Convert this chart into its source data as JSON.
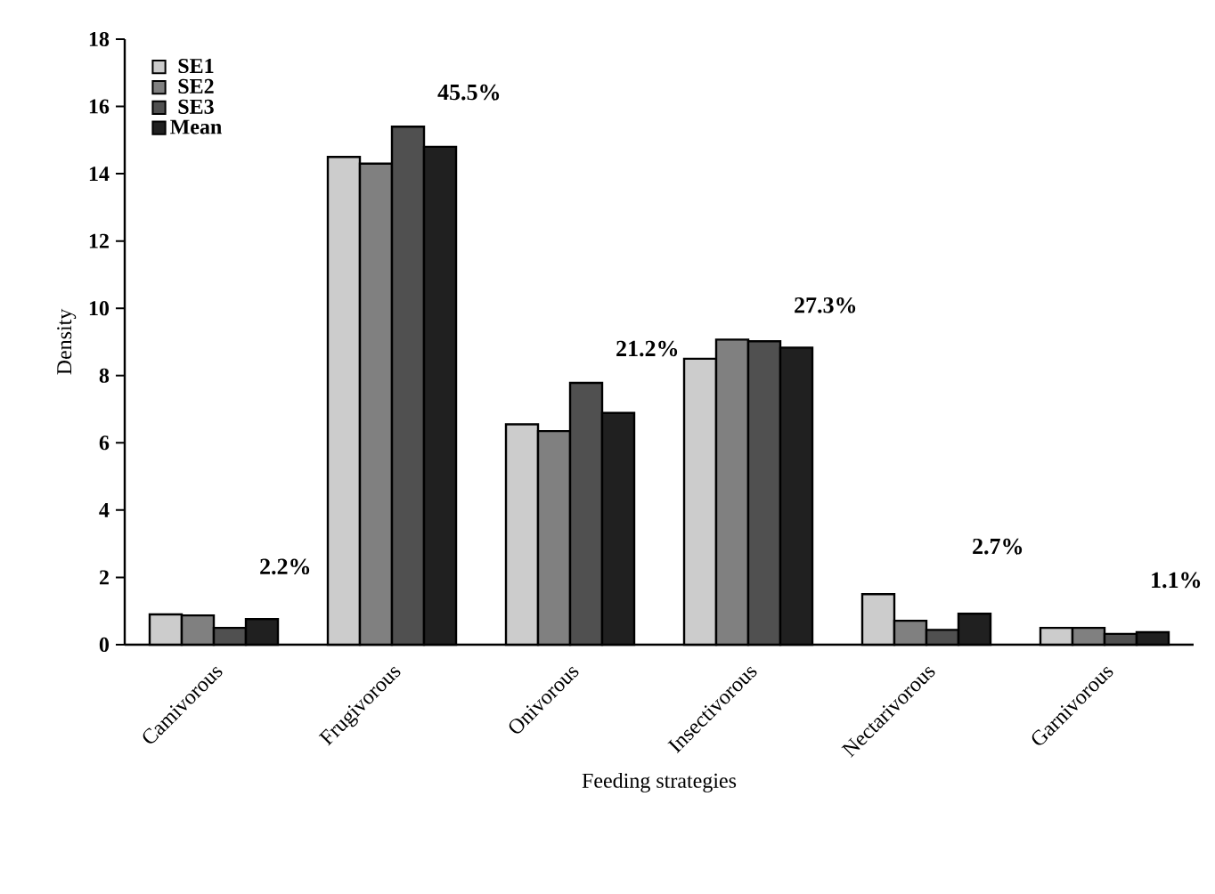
{
  "chart_data": {
    "type": "bar",
    "xlabel": "Feeding strategies",
    "ylabel": "Density",
    "categories": [
      "Camivorous",
      "Frugivorous",
      "Onivorous",
      "Insectivorous",
      "Nectarivorous",
      "Garnivorous"
    ],
    "series": [
      {
        "name": "SE1",
        "color": "#cccccc",
        "values": [
          0.9,
          14.5,
          6.55,
          8.5,
          1.5,
          0.5
        ]
      },
      {
        "name": "SE2",
        "color": "#808080",
        "values": [
          0.87,
          14.3,
          6.35,
          9.07,
          0.71,
          0.5
        ]
      },
      {
        "name": "SE3",
        "color": "#505050",
        "values": [
          0.5,
          15.4,
          7.78,
          9.02,
          0.44,
          0.32
        ]
      },
      {
        "name": "Mean",
        "color": "#202020",
        "values": [
          0.76,
          14.8,
          6.89,
          8.83,
          0.92,
          0.37
        ]
      }
    ],
    "annotations": [
      "2.2%",
      "45.5%",
      "21.2%",
      "27.3%",
      "2.7%",
      "1.1%"
    ],
    "ylim": [
      0,
      18
    ],
    "yticks": [
      0,
      2,
      4,
      6,
      8,
      10,
      12,
      14,
      16,
      18
    ],
    "legend": "top left",
    "grid": false
  }
}
